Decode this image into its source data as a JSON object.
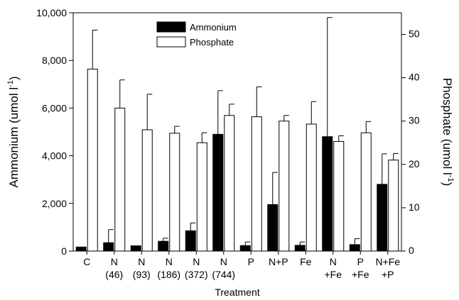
{
  "chart_data": {
    "type": "bar",
    "xlabel": "Treatment",
    "ylabel_left": "Ammonium (umol l",
    "ylabel_left_sup": "-1",
    "ylabel_right": "Phosphate (umol l",
    "ylabel_right_sup": "-1",
    "ylim_left": [
      0,
      10000
    ],
    "ylim_right": [
      0,
      55
    ],
    "left_ticks": [
      "0",
      "2,000",
      "4,000",
      "6,000",
      "8,000",
      "10,000"
    ],
    "left_tick_values": [
      0,
      2000,
      4000,
      6000,
      8000,
      10000
    ],
    "right_ticks": [
      "0",
      "10",
      "20",
      "30",
      "40",
      "50"
    ],
    "right_tick_values": [
      0,
      10,
      20,
      30,
      40,
      50
    ],
    "categories": [
      {
        "line1": "C",
        "line2": ""
      },
      {
        "line1": "N",
        "line2": "(46)"
      },
      {
        "line1": "N",
        "line2": "(93)"
      },
      {
        "line1": "N",
        "line2": "(186)"
      },
      {
        "line1": "N",
        "line2": "(372)"
      },
      {
        "line1": "N",
        "line2": "(744)"
      },
      {
        "line1": "P",
        "line2": ""
      },
      {
        "line1": "N+P",
        "line2": ""
      },
      {
        "line1": "Fe",
        "line2": ""
      },
      {
        "line1": "N",
        "line2": "+Fe"
      },
      {
        "line1": "P",
        "line2": "+Fe"
      },
      {
        "line1": "N+Fe",
        "line2": "+P"
      }
    ],
    "legend_position": "top-center",
    "series": [
      {
        "name": "Ammonium",
        "axis": "left",
        "color": "#000000",
        "values": [
          170,
          350,
          220,
          410,
          850,
          4900,
          230,
          1950,
          240,
          4800,
          270,
          2800
        ],
        "errors": [
          0,
          550,
          0,
          130,
          330,
          1830,
          150,
          1350,
          140,
          5000,
          250,
          1280
        ]
      },
      {
        "name": "Phosphate",
        "axis": "right",
        "color": "#ffffff",
        "values": [
          42,
          33,
          28,
          27.2,
          25,
          31.3,
          31,
          30,
          29.3,
          25.3,
          27.3,
          21
        ],
        "errors": [
          9,
          6.5,
          8.2,
          1.6,
          2.3,
          2.6,
          6.9,
          1.3,
          5.2,
          1.3,
          2.6,
          1.5
        ]
      }
    ]
  }
}
